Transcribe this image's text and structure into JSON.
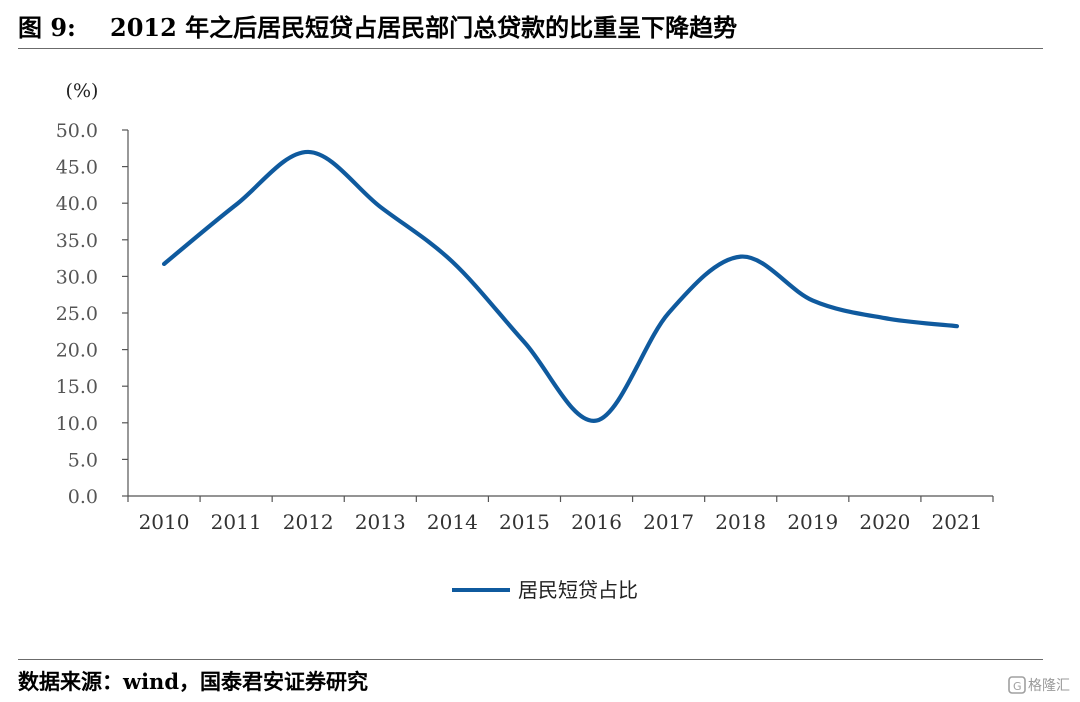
{
  "figure": {
    "number": "图 9:",
    "title": "2012 年之后居民短贷占居民部门总贷款的比重呈下降趋势"
  },
  "source": "数据来源：wind，国泰君安证券研究",
  "watermark": "格隆汇",
  "chart_data": {
    "type": "line",
    "unit_label": "(%)",
    "categories": [
      "2010",
      "2011",
      "2012",
      "2013",
      "2014",
      "2015",
      "2016",
      "2017",
      "2018",
      "2019",
      "2020",
      "2021"
    ],
    "series": [
      {
        "name": "居民短贷占比",
        "color": "#0f5a9e",
        "values": [
          31.7,
          39.8,
          47.0,
          39.5,
          32.0,
          21.0,
          10.3,
          25.0,
          32.7,
          26.7,
          24.3,
          23.2
        ]
      }
    ],
    "yticks": [
      "0.0",
      "5.0",
      "10.0",
      "15.0",
      "20.0",
      "25.0",
      "30.0",
      "35.0",
      "40.0",
      "45.0",
      "50.0"
    ],
    "ylim": [
      0,
      50
    ],
    "legend": "bottom-center",
    "grid": false
  }
}
